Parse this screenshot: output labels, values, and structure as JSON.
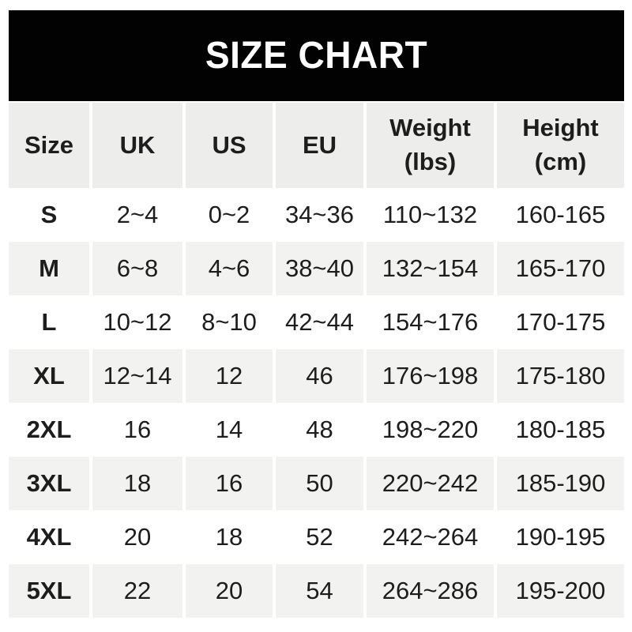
{
  "chart_data": {
    "type": "table",
    "title": "SIZE CHART",
    "columns": [
      "Size",
      "UK",
      "US",
      "EU",
      "Weight\n(lbs)",
      "Height\n(cm)"
    ],
    "rows": [
      {
        "size": "S",
        "uk": "2~4",
        "us": "0~2",
        "eu": "34~36",
        "weight": "110~132",
        "height": "160-165"
      },
      {
        "size": "M",
        "uk": "6~8",
        "us": "4~6",
        "eu": "38~40",
        "weight": "132~154",
        "height": "165-170"
      },
      {
        "size": "L",
        "uk": "10~12",
        "us": "8~10",
        "eu": "42~44",
        "weight": "154~176",
        "height": "170-175"
      },
      {
        "size": "XL",
        "uk": "12~14",
        "us": "12",
        "eu": "46",
        "weight": "176~198",
        "height": "175-180"
      },
      {
        "size": "2XL",
        "uk": "16",
        "us": "14",
        "eu": "48",
        "weight": "198~220",
        "height": "180-185"
      },
      {
        "size": "3XL",
        "uk": "18",
        "us": "16",
        "eu": "50",
        "weight": "220~242",
        "height": "185-190"
      },
      {
        "size": "4XL",
        "uk": "20",
        "us": "18",
        "eu": "52",
        "weight": "242~264",
        "height": "190-195"
      },
      {
        "size": "5XL",
        "uk": "22",
        "us": "20",
        "eu": "54",
        "weight": "264~286",
        "height": "195-200"
      }
    ],
    "layout": {
      "legend": "none",
      "grid": "alternating-row-shading",
      "header_position": "top"
    }
  },
  "colors": {
    "banner_bg": "#020202",
    "banner_text": "#ffffff",
    "header_row_bg": "#edeeec",
    "alt_row_bg": "#f2f2f0",
    "row_bg": "#ffffff",
    "text": "#1d1d1d"
  }
}
